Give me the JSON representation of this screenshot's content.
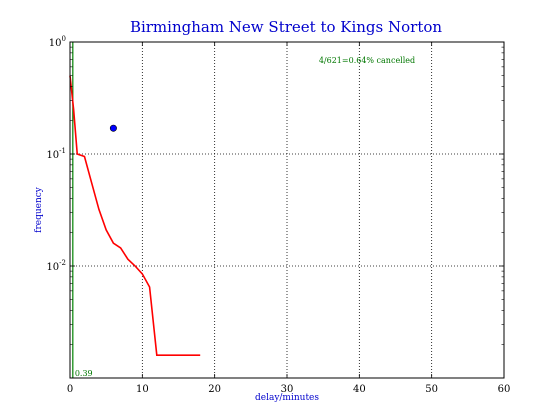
{
  "chart_data": {
    "type": "line",
    "title": "Birmingham New Street to Kings Norton",
    "xlabel": "delay/minutes",
    "ylabel": "frequency",
    "xlim": [
      0,
      60
    ],
    "ylim": [
      0.001,
      1
    ],
    "yscale": "log",
    "grid": true,
    "x_ticks": [
      0,
      10,
      20,
      30,
      40,
      50,
      60
    ],
    "y_ticks": [
      {
        "value": 1,
        "base": "10",
        "exp": "0"
      },
      {
        "value": 0.1,
        "base": "10",
        "exp": "-1"
      },
      {
        "value": 0.01,
        "base": "10",
        "exp": "-2"
      }
    ],
    "series": [
      {
        "color": "#ff0000",
        "x": [
          0,
          0.5,
          1,
          2,
          3,
          4,
          5,
          6,
          7,
          8,
          9,
          10,
          11,
          12,
          13,
          14,
          15,
          16,
          17,
          18
        ],
        "y": [
          0.5,
          0.25,
          0.1,
          0.095,
          0.055,
          0.032,
          0.021,
          0.016,
          0.0145,
          0.0115,
          0.01,
          0.0085,
          0.0065,
          0.0016,
          0.0016,
          0.0016,
          0.0016,
          0.0016,
          0.0016,
          0.0016
        ]
      }
    ],
    "points": [
      {
        "x": 6,
        "y": 0.17,
        "color": "#0000ff"
      }
    ],
    "vline": {
      "x": 0.39,
      "color": "#008000",
      "label": "0.39"
    },
    "annotation": "4/621=0.64% cancelled"
  }
}
